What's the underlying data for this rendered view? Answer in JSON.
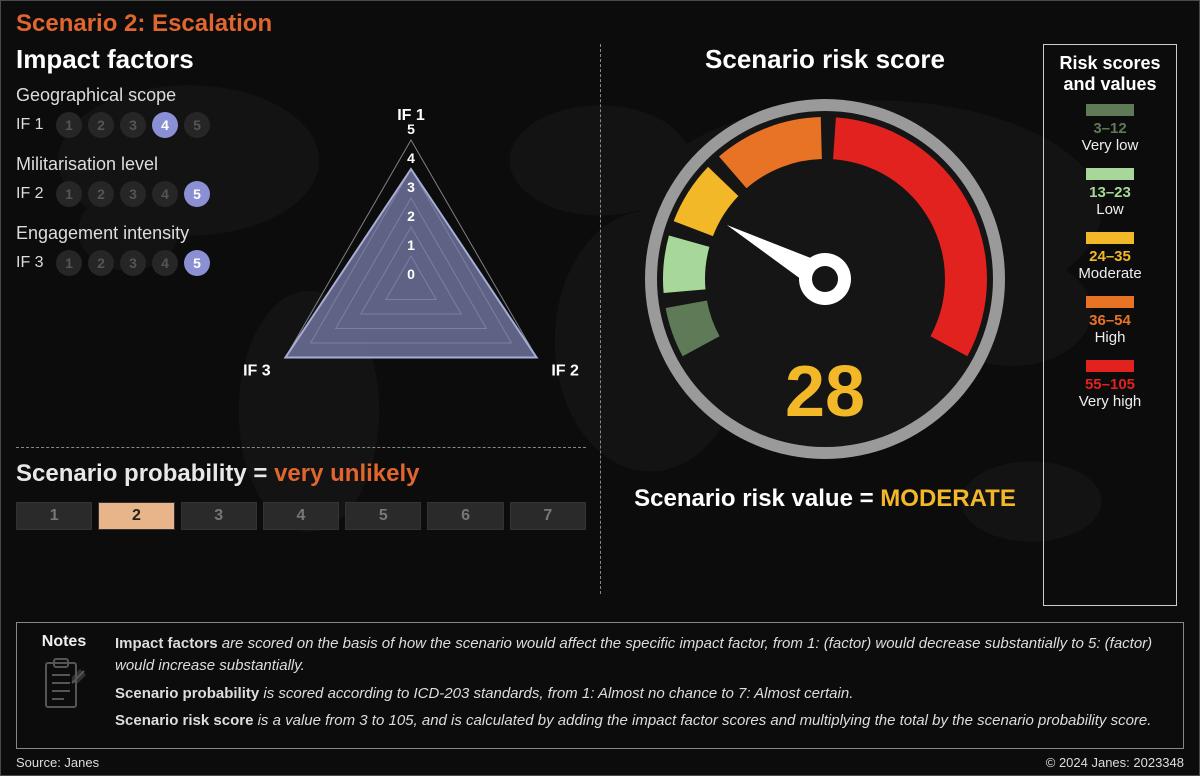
{
  "colors": {
    "background": "#0c0c0c",
    "title": "#e0652f",
    "panel_border": "#888888",
    "text": "#e8e8e8",
    "pip_on": "#8b8fd4",
    "radar_fill": "#7a7fad",
    "radar_fill_opacity": 0.75,
    "radar_stroke": "#a9add6",
    "prob_highlight": "#e8b48a",
    "gauge_ring": "#9a9a9a",
    "gauge_inner": "#151515",
    "needle": "#ffffff",
    "gauge_score": "#f2b828",
    "risk_value": "#f2b828"
  },
  "title": "Scenario 2: Escalation",
  "impact": {
    "heading": "Impact factors",
    "max": 5,
    "factors": [
      {
        "code": "IF 1",
        "name": "Geographical scope",
        "value": 4
      },
      {
        "code": "IF 2",
        "name": "Militarisation level",
        "value": 5
      },
      {
        "code": "IF 3",
        "name": "Engagement intensity",
        "value": 5
      }
    ],
    "radar": {
      "ticks": [
        0,
        1,
        2,
        3,
        4,
        5
      ],
      "tick_fontsize": 14,
      "vertex_label_fontsize": 16,
      "grid_color": "#b0b0c0",
      "aspect": "equilateral-triangle"
    }
  },
  "probability": {
    "label_prefix": "Scenario probability = ",
    "label_value": "very unlikely",
    "label_color": "#e0652f",
    "max": 7,
    "value": 2,
    "highlight_text_color": "#222222"
  },
  "gauge": {
    "title": "Scenario risk score",
    "score": 28,
    "score_fontsize": 72,
    "domain_min": 3,
    "domain_max": 105,
    "start_deg": 210,
    "end_deg": -30,
    "ring_outer_r": 180,
    "seg_outer_r": 162,
    "seg_inner_r": 120,
    "seg_gap_deg": 3,
    "segments": [
      {
        "min": 3,
        "max": 12,
        "color": "#5e7a56",
        "label": "Very low",
        "range_text": "3–12"
      },
      {
        "min": 13,
        "max": 23,
        "color": "#a7d89a",
        "label": "Low",
        "range_text": "13–23"
      },
      {
        "min": 24,
        "max": 35,
        "color": "#f2b828",
        "label": "Moderate",
        "range_text": "24–35"
      },
      {
        "min": 36,
        "max": 54,
        "color": "#e97324",
        "label": "High",
        "range_text": "36–54"
      },
      {
        "min": 55,
        "max": 105,
        "color": "#e2221e",
        "label": "Very high",
        "range_text": "55–105"
      }
    ],
    "risk_value_prefix": "Scenario risk value = ",
    "risk_value_text": "MODERATE"
  },
  "legend_title": "Risk scores and values",
  "notes": {
    "heading": "Notes",
    "lines": [
      "Impact factors|are scored on the basis of how the scenario would affect the specific impact factor, from 1: (factor) would decrease substantially to 5: (factor) would increase substantially.",
      "Scenario probability|is scored according to ICD-203 standards, from 1: Almost no chance to 7: Almost certain.",
      "Scenario risk score|is a value from 3 to 105, and is calculated by adding the impact factor scores and multiplying the total by the scenario probability score."
    ]
  },
  "footer": {
    "left": "Source: Janes",
    "right": "© 2024 Janes: 2023348"
  }
}
